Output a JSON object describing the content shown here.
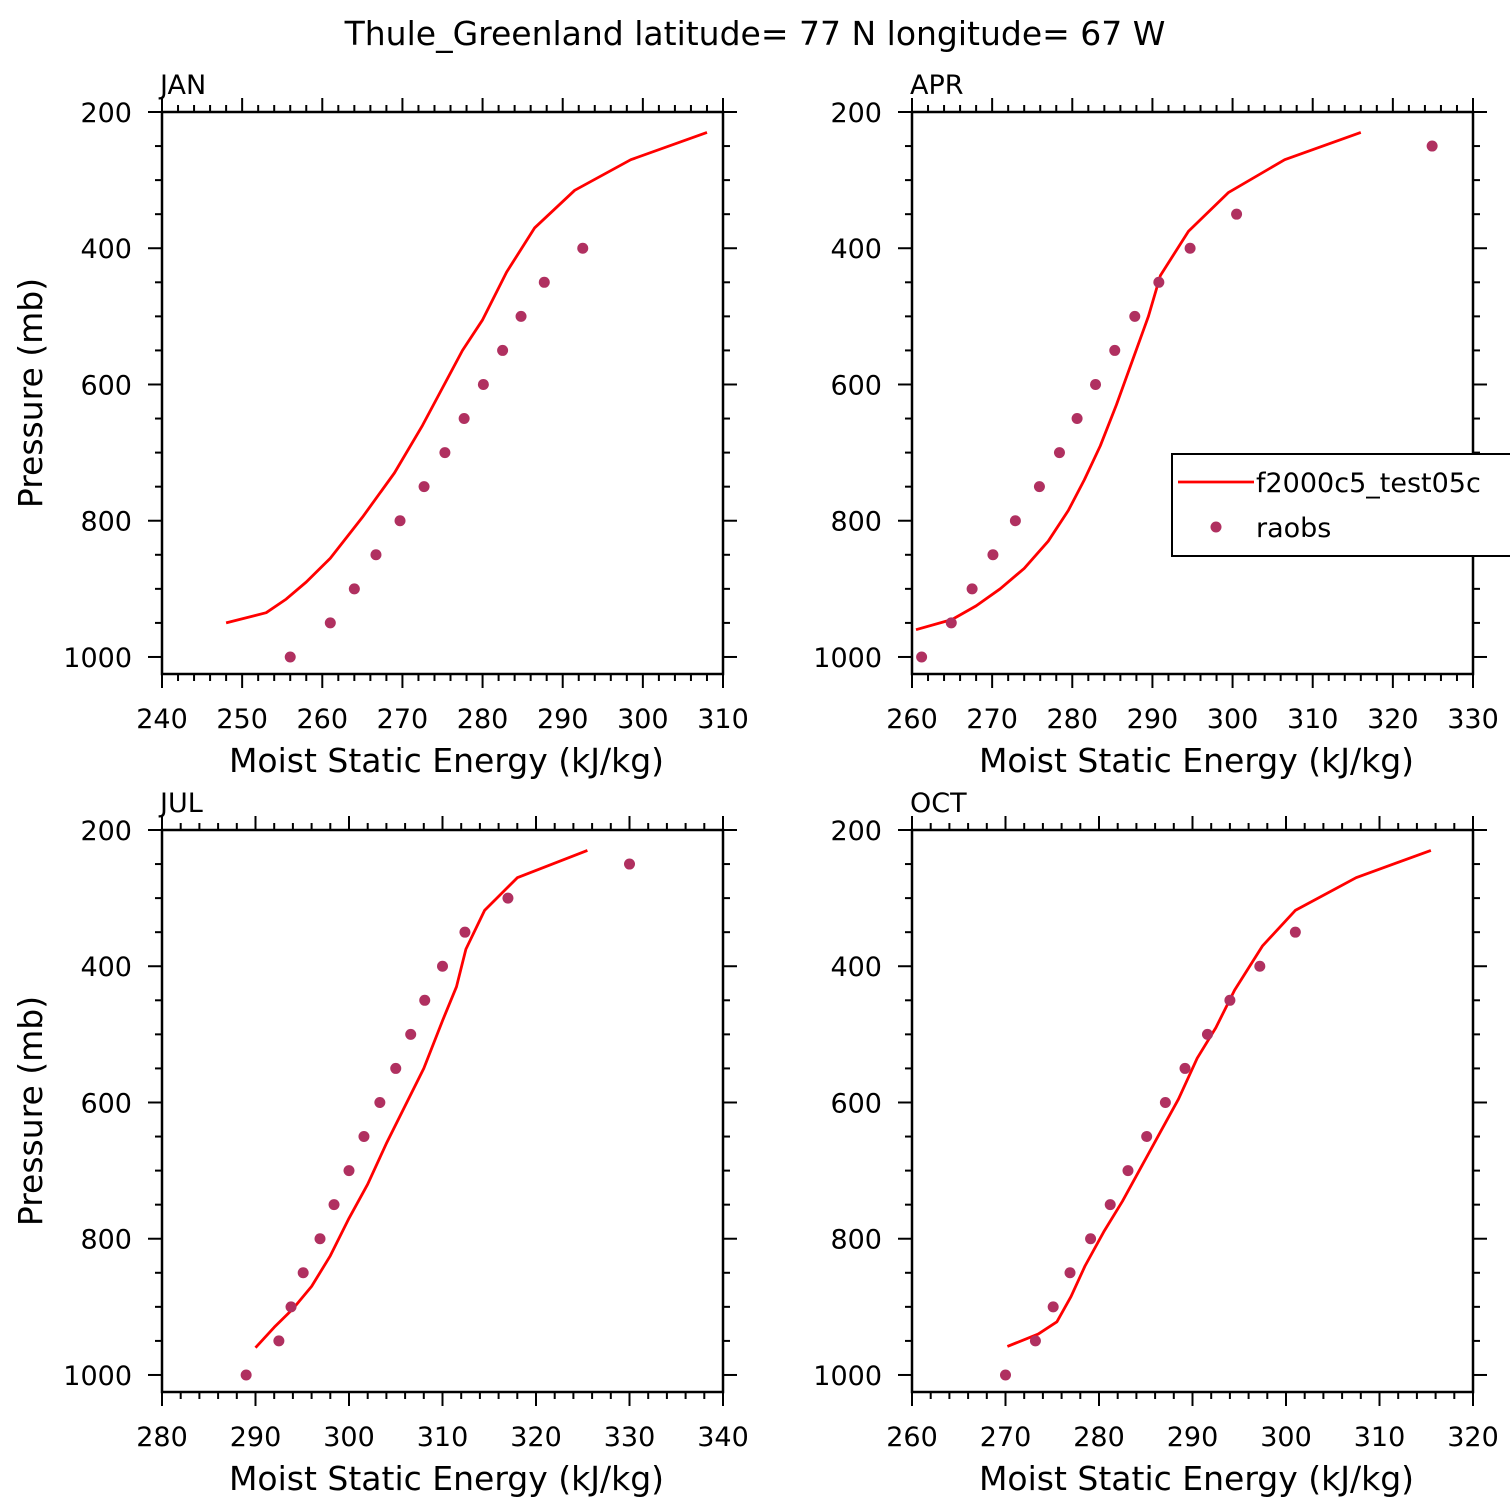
{
  "figure": {
    "title": "Thule_Greenland  latitude= 77 N longitude= 67 W",
    "model_color": "#ff0000",
    "obs_color": "#b03060",
    "legend": {
      "model_label": "f2000c5_test05c",
      "obs_label": "raobs",
      "panel": "APR"
    }
  },
  "chart_data": [
    {
      "type": "line",
      "panel": "JAN",
      "xlabel": "Moist Static Energy (kJ/kg)",
      "ylabel": "Pressure (mb)",
      "xlim": [
        240,
        310
      ],
      "ylim": [
        1025,
        200
      ],
      "xticks": [
        240,
        250,
        260,
        270,
        280,
        290,
        300,
        310
      ],
      "yticks": [
        200,
        400,
        600,
        800,
        1000
      ],
      "series": [
        {
          "name": "f2000c5_test05c",
          "kind": "line",
          "points": [
            [
              248,
              950
            ],
            [
              253,
              935
            ],
            [
              255.5,
              915
            ],
            [
              258,
              890
            ],
            [
              261,
              855
            ],
            [
              265,
              795
            ],
            [
              269,
              730
            ],
            [
              272.5,
              660
            ],
            [
              275,
              605
            ],
            [
              277.5,
              550
            ],
            [
              280,
              505
            ],
            [
              283,
              435
            ],
            [
              286.5,
              370
            ],
            [
              291.5,
              315
            ],
            [
              298.5,
              270
            ],
            [
              308,
              230
            ]
          ]
        },
        {
          "name": "raobs",
          "kind": "points",
          "points": [
            [
              256,
              1000
            ],
            [
              261,
              950
            ],
            [
              264,
              900
            ],
            [
              266.7,
              850
            ],
            [
              269.7,
              800
            ],
            [
              272.7,
              750
            ],
            [
              275.3,
              700
            ],
            [
              277.7,
              650
            ],
            [
              280.1,
              600
            ],
            [
              282.5,
              550
            ],
            [
              284.8,
              500
            ],
            [
              287.7,
              450
            ],
            [
              292.5,
              400
            ]
          ]
        }
      ]
    },
    {
      "type": "line",
      "panel": "APR",
      "xlabel": "Moist Static Energy (kJ/kg)",
      "ylabel": "",
      "xlim": [
        260,
        330
      ],
      "ylim": [
        1025,
        200
      ],
      "xticks": [
        260,
        270,
        280,
        290,
        300,
        310,
        320,
        330
      ],
      "yticks": [
        200,
        400,
        600,
        800,
        1000
      ],
      "series": [
        {
          "name": "f2000c5_test05c",
          "kind": "line",
          "points": [
            [
              260.5,
              960
            ],
            [
              265,
              945
            ],
            [
              268,
              925
            ],
            [
              271,
              900
            ],
            [
              274,
              870
            ],
            [
              277,
              830
            ],
            [
              279.5,
              785
            ],
            [
              281.5,
              740
            ],
            [
              283.5,
              690
            ],
            [
              285.5,
              630
            ],
            [
              287.5,
              565
            ],
            [
              289.5,
              500
            ],
            [
              291,
              440
            ],
            [
              294.5,
              375
            ],
            [
              299.5,
              318
            ],
            [
              306.5,
              270
            ],
            [
              316,
              230
            ]
          ]
        },
        {
          "name": "raobs",
          "kind": "points",
          "points": [
            [
              261.2,
              1000
            ],
            [
              264.9,
              950
            ],
            [
              267.5,
              900
            ],
            [
              270.1,
              850
            ],
            [
              272.9,
              800
            ],
            [
              275.9,
              750
            ],
            [
              278.4,
              700
            ],
            [
              280.6,
              650
            ],
            [
              282.9,
              600
            ],
            [
              285.3,
              550
            ],
            [
              287.8,
              500
            ],
            [
              290.8,
              450
            ],
            [
              294.7,
              400
            ],
            [
              300.5,
              350
            ],
            [
              324.9,
              250
            ]
          ]
        }
      ]
    },
    {
      "type": "line",
      "panel": "JUL",
      "xlabel": "Moist Static Energy (kJ/kg)",
      "ylabel": "Pressure (mb)",
      "xlim": [
        280,
        340
      ],
      "ylim": [
        1025,
        200
      ],
      "xticks": [
        280,
        290,
        300,
        310,
        320,
        330,
        340
      ],
      "yticks": [
        200,
        400,
        600,
        800,
        1000
      ],
      "series": [
        {
          "name": "f2000c5_test05c",
          "kind": "line",
          "points": [
            [
              290,
              960
            ],
            [
              292,
              930
            ],
            [
              294,
              903
            ],
            [
              296,
              870
            ],
            [
              298,
              825
            ],
            [
              300,
              770
            ],
            [
              302,
              720
            ],
            [
              304,
              660
            ],
            [
              306,
              605
            ],
            [
              308,
              550
            ],
            [
              310,
              480
            ],
            [
              311.5,
              430
            ],
            [
              312.5,
              375
            ],
            [
              314.5,
              318
            ],
            [
              318,
              270
            ],
            [
              325.5,
              230
            ]
          ]
        },
        {
          "name": "raobs",
          "kind": "points",
          "points": [
            [
              289,
              1000
            ],
            [
              292.5,
              950
            ],
            [
              293.8,
              900
            ],
            [
              295.1,
              850
            ],
            [
              296.9,
              800
            ],
            [
              298.4,
              750
            ],
            [
              300,
              700
            ],
            [
              301.6,
              650
            ],
            [
              303.3,
              600
            ],
            [
              305,
              550
            ],
            [
              306.6,
              500
            ],
            [
              308.1,
              450
            ],
            [
              310,
              400
            ],
            [
              312.4,
              350
            ],
            [
              317,
              300
            ],
            [
              330,
              250
            ]
          ]
        }
      ]
    },
    {
      "type": "line",
      "panel": "OCT",
      "xlabel": "Moist Static Energy (kJ/kg)",
      "ylabel": "",
      "xlim": [
        260,
        320
      ],
      "ylim": [
        1025,
        200
      ],
      "xticks": [
        260,
        270,
        280,
        290,
        300,
        310,
        320
      ],
      "yticks": [
        200,
        400,
        600,
        800,
        1000
      ],
      "series": [
        {
          "name": "f2000c5_test05c",
          "kind": "line",
          "points": [
            [
              270.2,
              958
            ],
            [
              273.5,
              940
            ],
            [
              275.5,
              922
            ],
            [
              277,
              885
            ],
            [
              278.5,
              840
            ],
            [
              280.5,
              790
            ],
            [
              282.5,
              745
            ],
            [
              284.5,
              695
            ],
            [
              286.5,
              645
            ],
            [
              288.5,
              595
            ],
            [
              290.5,
              535
            ],
            [
              292.5,
              490
            ],
            [
              294.5,
              435
            ],
            [
              297.5,
              370
            ],
            [
              301,
              318
            ],
            [
              307.5,
              270
            ],
            [
              315.5,
              230
            ]
          ]
        },
        {
          "name": "raobs",
          "kind": "points",
          "points": [
            [
              270,
              1000
            ],
            [
              273.2,
              950
            ],
            [
              275.1,
              900
            ],
            [
              276.9,
              850
            ],
            [
              279.1,
              800
            ],
            [
              281.2,
              750
            ],
            [
              283.1,
              700
            ],
            [
              285.1,
              650
            ],
            [
              287.1,
              600
            ],
            [
              289.2,
              550
            ],
            [
              291.6,
              500
            ],
            [
              294,
              450
            ],
            [
              297.2,
              400
            ],
            [
              301,
              350
            ]
          ]
        }
      ]
    }
  ]
}
